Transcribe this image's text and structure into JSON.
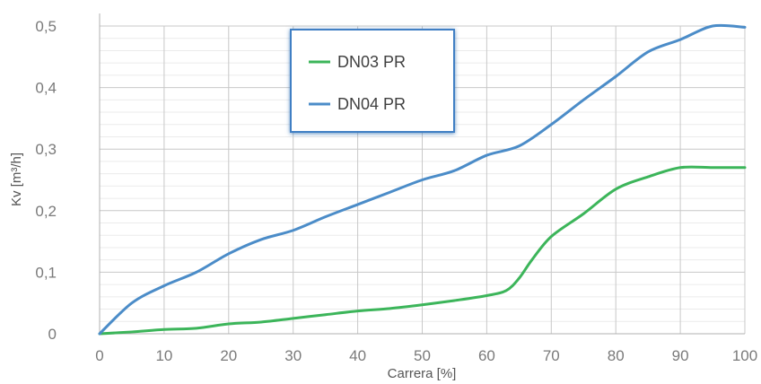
{
  "chart_data": {
    "type": "line",
    "title": "",
    "xlabel": "Carrera [%]",
    "ylabel": "Kv [m³/h]",
    "xlim": [
      0,
      100
    ],
    "ylim": [
      0,
      0.5
    ],
    "x_ticks": [
      "0",
      "10",
      "20",
      "30",
      "40",
      "50",
      "60",
      "70",
      "80",
      "90",
      "100"
    ],
    "y_ticks": [
      "0",
      "0,1",
      "0,2",
      "0,3",
      "0,4",
      "0,5"
    ],
    "grid": true,
    "legend_position": "top-center",
    "series": [
      {
        "name": "DN03 PR",
        "color": "#3cb55a",
        "x": [
          0,
          5,
          10,
          15,
          20,
          25,
          30,
          35,
          40,
          45,
          50,
          55,
          60,
          63,
          65,
          67,
          70,
          75,
          80,
          85,
          90,
          95,
          100
        ],
        "y": [
          0,
          0.003,
          0.007,
          0.009,
          0.016,
          0.019,
          0.025,
          0.031,
          0.037,
          0.041,
          0.047,
          0.054,
          0.062,
          0.07,
          0.09,
          0.12,
          0.158,
          0.195,
          0.235,
          0.255,
          0.27,
          0.27,
          0.27
        ]
      },
      {
        "name": "DN04 PR",
        "color": "#4b8cc8",
        "x": [
          0,
          5,
          10,
          15,
          20,
          25,
          30,
          35,
          40,
          45,
          50,
          55,
          60,
          65,
          70,
          75,
          80,
          85,
          90,
          95,
          100
        ],
        "y": [
          0,
          0.05,
          0.078,
          0.1,
          0.13,
          0.153,
          0.168,
          0.19,
          0.21,
          0.23,
          0.25,
          0.265,
          0.29,
          0.305,
          0.34,
          0.38,
          0.418,
          0.458,
          0.478,
          0.5,
          0.498
        ]
      }
    ]
  }
}
